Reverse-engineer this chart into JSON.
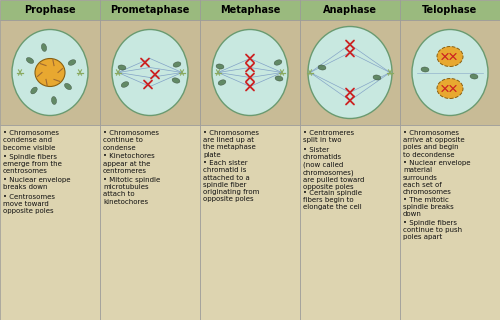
{
  "stages": [
    "Prophase",
    "Prometaphase",
    "Metaphase",
    "Anaphase",
    "Telophase"
  ],
  "bullet_points": [
    [
      "Chromosomes\ncondense and\nbecome visible",
      "Spindle fibers\nemerge from the\ncentrosomes",
      "Nuclear envelope\nbreaks down",
      "Centrosomes\nmove toward\nopposite poles"
    ],
    [
      "Chromosomes\ncontinue to\ncondense",
      "Kinetochores\nappear at the\ncentromeres",
      "Mitotic spindle\nmicrotubules\nattach to\nkinetochores"
    ],
    [
      "Chromosomes\nare lined up at\nthe metaphase\nplate",
      "Each sister\nchromatid is\nattached to a\nspindle fiber\noriginating from\nopposite poles"
    ],
    [
      "Centromeres\nsplit in two",
      "Sister\nchromatids\n(now called\nchromosomes)\nare pulled toward\nopposite poles",
      "Certain spindle\nfibers begin to\nelongate the cell"
    ],
    [
      "Chromosomes\narrive at opposite\npoles and begin\nto decondense",
      "Nuclear envelope\nmaterial\nsurrounds\neach set of\nchromosomes",
      "The mitotic\nspindle breaks\ndown",
      "Spindle fibers\ncontinue to push\npoles apart"
    ]
  ],
  "header_bg": "#9aba7e",
  "img_bg": "#c8bb96",
  "text_bg": "#ddd4b0",
  "border_color": "#999999",
  "header_text_color": "#000000",
  "bullet_text_color": "#111111",
  "cell_fill": "#c8e8e0",
  "cell_edge": "#6a9a70",
  "nucleus_fill": "#e8a830",
  "nucleus_edge": "#8a6010",
  "chromo_color": "#cc2222",
  "spindle_color": "#7090c0",
  "organelle_fill": "#507850",
  "fig_width": 5.0,
  "fig_height": 3.2,
  "dpi": 100
}
